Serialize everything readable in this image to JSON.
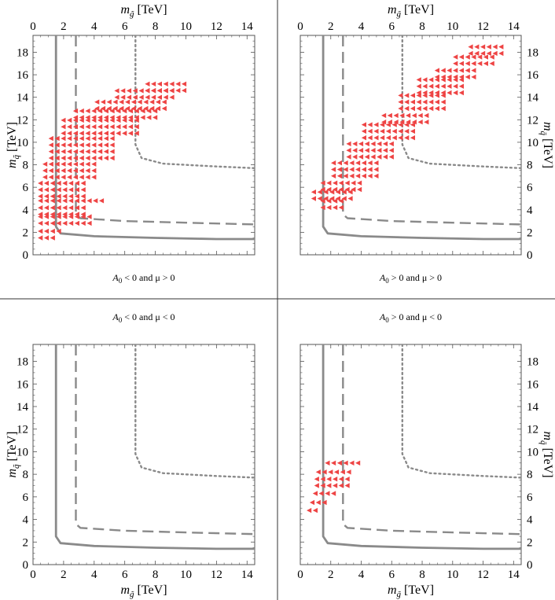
{
  "colors": {
    "points": "#ee4444",
    "contours": "#8a8a8a",
    "frame": "#555555",
    "divider": "#333333"
  },
  "chart_data": [
    {
      "type": "scatter",
      "caption": "A_0 < 0 and μ > 0",
      "caption_parts": {
        "sym": "A",
        "sub": "0",
        "rest": " < 0 and μ > 0"
      },
      "xlabel": {
        "text": "m",
        "sub": "g̃",
        "unit": " [TeV]",
        "position": "top"
      },
      "ylabel": {
        "text": "m",
        "sub": "q̃",
        "unit": " [TeV]",
        "position": "left"
      },
      "xlim": [
        0,
        14.5
      ],
      "ylim": [
        0,
        19.5
      ],
      "xticks": [
        "0",
        "2",
        "4",
        "6",
        "8",
        "10",
        "12",
        "14"
      ],
      "yticks": [
        "0",
        "2",
        "4",
        "6",
        "8",
        "10",
        "12",
        "14",
        "16",
        "18"
      ],
      "contours": [
        {
          "style": "solid",
          "points": [
            [
              1.5,
              19.5
            ],
            [
              1.5,
              2.5
            ],
            [
              1.8,
              1.9
            ],
            [
              4,
              1.65
            ],
            [
              8,
              1.5
            ],
            [
              12,
              1.4
            ],
            [
              14.5,
              1.4
            ]
          ]
        },
        {
          "style": "dashed",
          "points": [
            [
              2.8,
              19.5
            ],
            [
              2.8,
              3.6
            ],
            [
              3.1,
              3.25
            ],
            [
              6,
              3.0
            ],
            [
              10,
              2.85
            ],
            [
              14.5,
              2.7
            ]
          ]
        },
        {
          "style": "dotted",
          "points": [
            [
              6.7,
              19.5
            ],
            [
              6.7,
              9.8
            ],
            [
              7.1,
              8.6
            ],
            [
              8.5,
              8.1
            ],
            [
              12,
              7.85
            ],
            [
              14.5,
              7.7
            ]
          ]
        }
      ],
      "points": [
        {
          "x": [
            0.5,
            1.3
          ],
          "y": [
            1.5,
            1.9
          ]
        },
        {
          "x": [
            0.5,
            2.0
          ],
          "y": [
            2.1,
            2.5
          ]
        },
        {
          "x": [
            0.5,
            3.8
          ],
          "y": [
            2.8,
            3.4
          ]
        },
        {
          "x": [
            0.5,
            3.4
          ],
          "y": [
            3.6,
            4.5
          ]
        },
        {
          "x": [
            0.5,
            4.8
          ],
          "y": [
            4.8,
            5.0
          ]
        },
        {
          "x": [
            0.5,
            3.6
          ],
          "y": [
            5.2,
            6.6
          ]
        },
        {
          "x": [
            0.8,
            4.3
          ],
          "y": [
            6.9,
            8.4
          ]
        },
        {
          "x": [
            1.2,
            5.2
          ],
          "y": [
            8.6,
            10.5
          ]
        },
        {
          "x": [
            2.0,
            7.0
          ],
          "y": [
            10.8,
            12.0
          ]
        },
        {
          "x": [
            2.8,
            8.2
          ],
          "y": [
            12.2,
            12.9
          ]
        },
        {
          "x": [
            4.2,
            8.8
          ],
          "y": [
            13.0,
            13.9
          ]
        },
        {
          "x": [
            5.5,
            9.4
          ],
          "y": [
            14.0,
            14.6
          ]
        },
        {
          "x": [
            7.5,
            10.2
          ],
          "y": [
            14.6,
            15.2
          ]
        }
      ]
    },
    {
      "type": "scatter",
      "caption": "A_0 > 0 and μ > 0",
      "caption_parts": {
        "sym": "A",
        "sub": "0",
        "rest": " > 0 and μ > 0"
      },
      "xlabel": {
        "text": "m",
        "sub": "g̃",
        "unit": " [TeV]",
        "position": "top"
      },
      "ylabel": {
        "text": "m",
        "sub": "q̃",
        "unit": " [TeV]",
        "position": "right"
      },
      "xlim": [
        0,
        14.5
      ],
      "ylim": [
        0,
        19.5
      ],
      "xticks": [
        "0",
        "2",
        "4",
        "6",
        "8",
        "10",
        "12",
        "14"
      ],
      "yticks": [
        "0",
        "2",
        "4",
        "6",
        "8",
        "10",
        "12",
        "14",
        "16",
        "18"
      ],
      "contours": [
        {
          "style": "solid",
          "points": [
            [
              1.5,
              19.5
            ],
            [
              1.5,
              2.5
            ],
            [
              1.8,
              1.9
            ],
            [
              4,
              1.65
            ],
            [
              8,
              1.5
            ],
            [
              12,
              1.4
            ],
            [
              14.5,
              1.4
            ]
          ]
        },
        {
          "style": "dashed",
          "points": [
            [
              2.8,
              19.5
            ],
            [
              2.8,
              3.6
            ],
            [
              3.1,
              3.25
            ],
            [
              6,
              3.0
            ],
            [
              10,
              2.85
            ],
            [
              14.5,
              2.7
            ]
          ]
        },
        {
          "style": "dotted",
          "points": [
            [
              6.7,
              19.5
            ],
            [
              6.7,
              9.8
            ],
            [
              7.1,
              8.6
            ],
            [
              8.5,
              8.1
            ],
            [
              12,
              7.85
            ],
            [
              14.5,
              7.7
            ]
          ]
        }
      ],
      "points": [
        {
          "x": [
            1.5,
            2.8
          ],
          "y": [
            4.2,
            4.8
          ]
        },
        {
          "x": [
            0.9,
            3.5
          ],
          "y": [
            5.0,
            5.6
          ]
        },
        {
          "x": [
            1.5,
            4.2
          ],
          "y": [
            5.8,
            6.8
          ]
        },
        {
          "x": [
            2.2,
            5.0
          ],
          "y": [
            7.0,
            8.5
          ]
        },
        {
          "x": [
            3.2,
            6.2
          ],
          "y": [
            8.7,
            10.2
          ]
        },
        {
          "x": [
            4.2,
            7.4
          ],
          "y": [
            10.4,
            11.6
          ]
        },
        {
          "x": [
            5.5,
            8.6
          ],
          "y": [
            11.8,
            12.8
          ]
        },
        {
          "x": [
            6.6,
            9.6
          ],
          "y": [
            13.0,
            14.2
          ]
        },
        {
          "x": [
            7.8,
            10.6
          ],
          "y": [
            14.4,
            15.6
          ]
        },
        {
          "x": [
            9.0,
            11.6
          ],
          "y": [
            15.8,
            16.8
          ]
        },
        {
          "x": [
            10.2,
            12.6
          ],
          "y": [
            17.0,
            17.9
          ]
        },
        {
          "x": [
            11.2,
            13.2
          ],
          "y": [
            17.9,
            18.5
          ]
        }
      ]
    },
    {
      "type": "scatter",
      "caption": "A_0 < 0 and μ < 0",
      "caption_parts": {
        "sym": "A",
        "sub": "0",
        "rest": " < 0 and μ < 0"
      },
      "xlabel": {
        "text": "m",
        "sub": "g̃",
        "unit": " [TeV]",
        "position": "bottom"
      },
      "ylabel": {
        "text": "m",
        "sub": "q̃",
        "unit": " [TeV]",
        "position": "left"
      },
      "xlim": [
        0,
        14.5
      ],
      "ylim": [
        0,
        19.5
      ],
      "xticks": [
        "0",
        "2",
        "4",
        "6",
        "8",
        "10",
        "12",
        "14"
      ],
      "yticks": [
        "0",
        "2",
        "4",
        "6",
        "8",
        "10",
        "12",
        "14",
        "16",
        "18"
      ],
      "contours": [
        {
          "style": "solid",
          "points": [
            [
              1.5,
              19.5
            ],
            [
              1.5,
              2.5
            ],
            [
              1.8,
              1.9
            ],
            [
              4,
              1.65
            ],
            [
              8,
              1.5
            ],
            [
              12,
              1.4
            ],
            [
              14.5,
              1.4
            ]
          ]
        },
        {
          "style": "dashed",
          "points": [
            [
              2.8,
              19.5
            ],
            [
              2.8,
              3.6
            ],
            [
              3.1,
              3.25
            ],
            [
              6,
              3.0
            ],
            [
              10,
              2.85
            ],
            [
              14.5,
              2.7
            ]
          ]
        },
        {
          "style": "dotted",
          "points": [
            [
              6.7,
              19.5
            ],
            [
              6.7,
              9.8
            ],
            [
              7.1,
              8.6
            ],
            [
              8.5,
              8.1
            ],
            [
              12,
              7.85
            ],
            [
              14.5,
              7.7
            ]
          ]
        }
      ],
      "points": []
    },
    {
      "type": "scatter",
      "caption": "A_0 > 0 and μ < 0",
      "caption_parts": {
        "sym": "A",
        "sub": "0",
        "rest": " > 0 and μ < 0"
      },
      "xlabel": {
        "text": "m",
        "sub": "g̃",
        "unit": " [TeV]",
        "position": "bottom"
      },
      "ylabel": {
        "text": "m",
        "sub": "q̃",
        "unit": " [TeV]",
        "position": "right"
      },
      "xlim": [
        0,
        14.5
      ],
      "ylim": [
        0,
        19.5
      ],
      "xticks": [
        "0",
        "2",
        "4",
        "6",
        "8",
        "10",
        "12",
        "14"
      ],
      "yticks": [
        "0",
        "2",
        "4",
        "6",
        "8",
        "10",
        "12",
        "14",
        "16",
        "18"
      ],
      "contours": [
        {
          "style": "solid",
          "points": [
            [
              1.5,
              19.5
            ],
            [
              1.5,
              2.5
            ],
            [
              1.8,
              1.9
            ],
            [
              4,
              1.65
            ],
            [
              8,
              1.5
            ],
            [
              12,
              1.4
            ],
            [
              14.5,
              1.4
            ]
          ]
        },
        {
          "style": "dashed",
          "points": [
            [
              2.8,
              19.5
            ],
            [
              2.8,
              3.6
            ],
            [
              3.1,
              3.25
            ],
            [
              6,
              3.0
            ],
            [
              10,
              2.85
            ],
            [
              14.5,
              2.7
            ]
          ]
        },
        {
          "style": "dotted",
          "points": [
            [
              6.7,
              19.5
            ],
            [
              6.7,
              9.8
            ],
            [
              7.1,
              8.6
            ],
            [
              8.5,
              8.1
            ],
            [
              12,
              7.85
            ],
            [
              14.5,
              7.7
            ]
          ]
        }
      ],
      "points": [
        {
          "x": [
            0.6,
            1.0
          ],
          "y": [
            4.8,
            5.0
          ]
        },
        {
          "x": [
            0.8,
            1.8
          ],
          "y": [
            5.5,
            6.0
          ]
        },
        {
          "x": [
            1.0,
            2.2
          ],
          "y": [
            6.3,
            6.7
          ]
        },
        {
          "x": [
            1.1,
            3.2
          ],
          "y": [
            7.0,
            8.0
          ]
        },
        {
          "x": [
            1.2,
            3.4
          ],
          "y": [
            8.2,
            8.6
          ]
        },
        {
          "x": [
            1.8,
            4.0
          ],
          "y": [
            9.0,
            9.5
          ]
        }
      ]
    }
  ]
}
